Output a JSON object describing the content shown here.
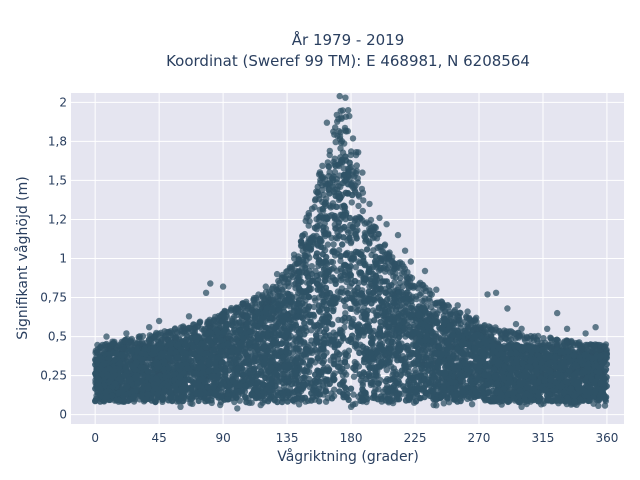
{
  "colors": {
    "plot_background": "#E5E5F0",
    "grid": "#ffffff",
    "marker": "#2F5266",
    "text": "#2a3f5f"
  },
  "chart_data": {
    "type": "scatter",
    "title_line1": "År 1979 - 2019",
    "title_line2": "Koordinat (Sweref 99 TM): E 468981, N 6208564",
    "xlabel": "Vågriktning (grader)",
    "ylabel": "Signifikant våghöjd (m)",
    "xlim": [
      -17,
      372
    ],
    "ylim": [
      -0.06,
      2.06
    ],
    "grid": true,
    "legend": "none",
    "x_ticks": [
      0,
      45,
      90,
      135,
      180,
      225,
      270,
      315,
      360
    ],
    "x_tick_labels": [
      "0",
      "45",
      "90",
      "135",
      "180",
      "225",
      "270",
      "315",
      "360"
    ],
    "y_ticks": [
      0,
      0.25,
      0.5,
      0.75,
      1,
      1.25,
      1.5,
      1.75,
      2
    ],
    "y_tick_labels": [
      "0",
      "0,25",
      "0,5",
      "0,75",
      "1",
      "1,2",
      "1,5",
      "1,8",
      "2"
    ],
    "envelope": {
      "description": "approximate upper boundary of the dense point cloud",
      "x": [
        0,
        20,
        40,
        60,
        80,
        100,
        120,
        135,
        145,
        155,
        160,
        165,
        170,
        175,
        180,
        185,
        190,
        200,
        210,
        225,
        240,
        255,
        270,
        285,
        300,
        315,
        330,
        345,
        360
      ],
      "y_max": [
        0.45,
        0.48,
        0.52,
        0.56,
        0.62,
        0.7,
        0.8,
        0.92,
        1.15,
        1.45,
        1.65,
        1.8,
        1.92,
        1.98,
        1.9,
        1.6,
        1.35,
        1.15,
        1.02,
        0.88,
        0.76,
        0.66,
        0.6,
        0.55,
        0.52,
        0.5,
        0.48,
        0.46,
        0.45
      ],
      "y_min": 0.05
    },
    "outliers": [
      {
        "x": 163,
        "y": 1.87
      },
      {
        "x": 170,
        "y": 1.92
      },
      {
        "x": 172,
        "y": 2.04
      },
      {
        "x": 176,
        "y": 2.03
      },
      {
        "x": 178,
        "y": 1.95
      },
      {
        "x": 185,
        "y": 1.68
      },
      {
        "x": 188,
        "y": 1.55
      },
      {
        "x": 193,
        "y": 1.35
      },
      {
        "x": 200,
        "y": 1.26
      },
      {
        "x": 205,
        "y": 1.22
      },
      {
        "x": 213,
        "y": 1.15
      },
      {
        "x": 218,
        "y": 1.05
      },
      {
        "x": 222,
        "y": 0.98
      },
      {
        "x": 232,
        "y": 0.92
      },
      {
        "x": 240,
        "y": 0.8
      },
      {
        "x": 244,
        "y": 0.72
      },
      {
        "x": 255,
        "y": 0.7
      },
      {
        "x": 262,
        "y": 0.66
      },
      {
        "x": 268,
        "y": 0.62
      },
      {
        "x": 276,
        "y": 0.77
      },
      {
        "x": 282,
        "y": 0.78
      },
      {
        "x": 290,
        "y": 0.68
      },
      {
        "x": 296,
        "y": 0.58
      },
      {
        "x": 300,
        "y": 0.55
      },
      {
        "x": 318,
        "y": 0.55
      },
      {
        "x": 325,
        "y": 0.65
      },
      {
        "x": 332,
        "y": 0.55
      },
      {
        "x": 345,
        "y": 0.52
      },
      {
        "x": 352,
        "y": 0.56
      },
      {
        "x": 78,
        "y": 0.78
      },
      {
        "x": 81,
        "y": 0.84
      },
      {
        "x": 90,
        "y": 0.82
      },
      {
        "x": 66,
        "y": 0.63
      },
      {
        "x": 45,
        "y": 0.6
      },
      {
        "x": 38,
        "y": 0.56
      },
      {
        "x": 22,
        "y": 0.52
      },
      {
        "x": 8,
        "y": 0.5
      },
      {
        "x": 120,
        "y": 0.82
      },
      {
        "x": 128,
        "y": 0.9
      },
      {
        "x": 140,
        "y": 1.0
      },
      {
        "x": 180,
        "y": 0.05
      },
      {
        "x": 100,
        "y": 0.04
      },
      {
        "x": 60,
        "y": 0.05
      },
      {
        "x": 240,
        "y": 0.06
      },
      {
        "x": 300,
        "y": 0.05
      }
    ]
  }
}
